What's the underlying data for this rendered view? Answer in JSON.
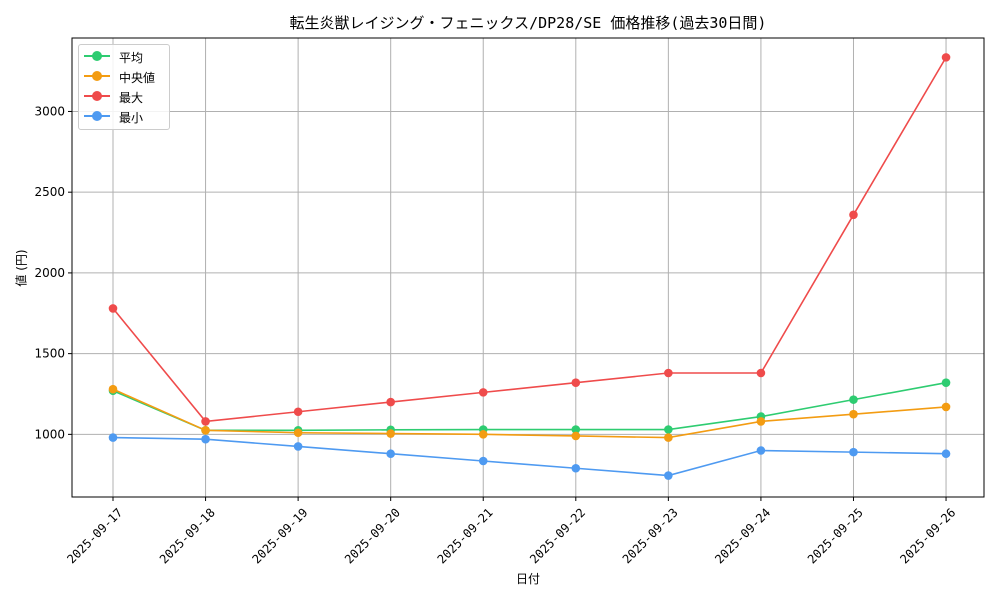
{
  "chart_data": {
    "type": "line",
    "title": "転生炎獣レイジング・フェニックス/DP28/SE 価格推移(過去30日間)",
    "xlabel": "日付",
    "ylabel": "値 (円)",
    "x": [
      "2025-09-17",
      "2025-09-18",
      "2025-09-19",
      "2025-09-20",
      "2025-09-21",
      "2025-09-22",
      "2025-09-23",
      "2025-09-24",
      "2025-09-25",
      "2025-09-26"
    ],
    "ylim": [
      612,
      3455
    ],
    "yticks": [
      1000,
      1500,
      2000,
      2500,
      3000
    ],
    "grid": true,
    "legend_position": "top-left",
    "series": [
      {
        "name": "平均",
        "color": "#2ecc71",
        "values": [
          1270,
          1025,
          1025,
          1028,
          1030,
          1030,
          1030,
          1110,
          1215,
          1320
        ]
      },
      {
        "name": "中央値",
        "color": "#f39c12",
        "values": [
          1280,
          1025,
          1010,
          1005,
          1000,
          990,
          980,
          1080,
          1125,
          1170
        ]
      },
      {
        "name": "最大",
        "color": "#ef4b4b",
        "values": [
          1780,
          1080,
          1140,
          1200,
          1260,
          1320,
          1380,
          1380,
          2360,
          3335
        ]
      },
      {
        "name": "最小",
        "color": "#4e9af1",
        "values": [
          980,
          970,
          925,
          880,
          835,
          790,
          745,
          900,
          890,
          880
        ]
      }
    ]
  }
}
